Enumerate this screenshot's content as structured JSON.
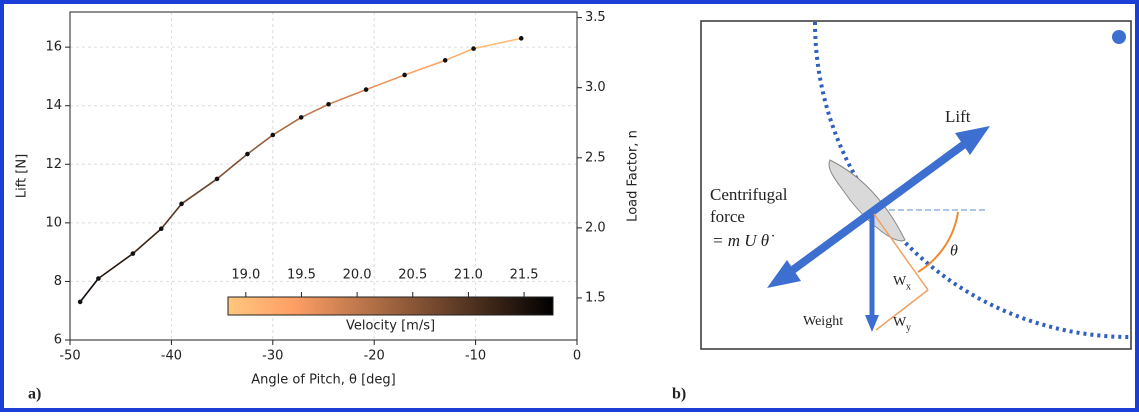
{
  "chart_data": {
    "type": "line",
    "xlabel": "Angle of Pitch, θ [deg]",
    "ylabel": "Lift [N]",
    "y2label": "Load Factor, n",
    "x": [
      -49,
      -47.2,
      -43.8,
      -41,
      -39,
      -35.5,
      -32.5,
      -30,
      -27.2,
      -24.5,
      -20.8,
      -17,
      -13,
      -10.2,
      -5.5
    ],
    "series": [
      {
        "values": [
          7.3,
          8.1,
          8.95,
          9.8,
          10.65,
          11.5,
          12.35,
          13.0,
          13.6,
          14.05,
          14.55,
          15.05,
          15.55,
          15.95,
          16.3
        ],
        "velocity": [
          21.7,
          21.5,
          21.3,
          21.1,
          20.9,
          20.7,
          20.5,
          20.3,
          20.1,
          19.9,
          19.7,
          19.5,
          19.3,
          19.1,
          18.9
        ],
        "point_color": "#111111"
      }
    ],
    "xlim": [
      -50,
      0
    ],
    "xticks": [
      -50,
      -40,
      -30,
      -20,
      -10,
      0
    ],
    "ylim": [
      6,
      17.2
    ],
    "yticks": [
      6,
      8,
      10,
      12,
      14,
      16
    ],
    "y2lim": [
      1.2,
      3.54
    ],
    "y2ticks": [
      1.5,
      {
        "value": 2,
        "label": "2.0"
      },
      2.5,
      {
        "value": 3,
        "label": "3.0"
      },
      3.5
    ],
    "grid": true,
    "colormap": "copper_r",
    "colorbar": {
      "label": "Velocity [m/s]",
      "lim": [
        18.84,
        21.76
      ],
      "ticks": [
        {
          "value": 19,
          "label": "19.0"
        },
        19.5,
        {
          "value": 20,
          "label": "20.0"
        },
        20.5,
        {
          "value": 21,
          "label": "21.0"
        },
        21.5
      ]
    }
  },
  "panel_labels": [
    "a)",
    "b)"
  ],
  "diagram": {
    "lift": "Lift",
    "centrifugal": "Centrifugal",
    "force": "force",
    "formula": "= m U θ̇",
    "theta": "θ",
    "wx": "W",
    "wx_sub": "x",
    "wy": "W",
    "wy_sub": "y",
    "weight": "Weight"
  }
}
